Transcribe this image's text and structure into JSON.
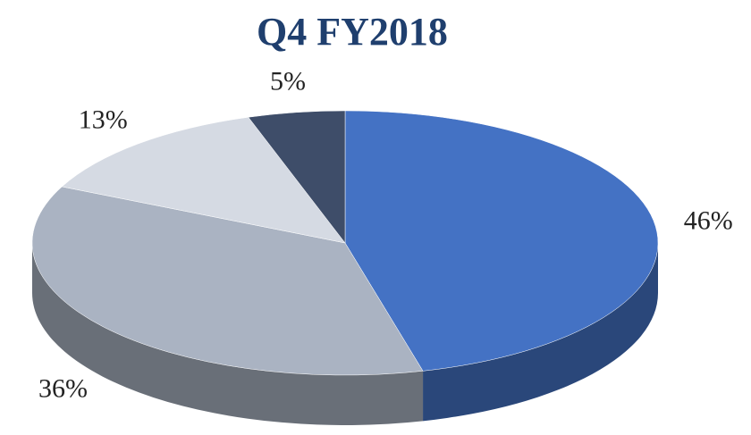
{
  "chart_data": {
    "type": "pie",
    "title": "Q4 FY2018",
    "values": [
      46,
      36,
      13,
      5
    ],
    "value_labels": [
      "46%",
      "36%",
      "13%",
      "5%"
    ],
    "colors": [
      "#4472c4",
      "#aab3c2",
      "#d5dae3",
      "#3e4d69"
    ]
  }
}
